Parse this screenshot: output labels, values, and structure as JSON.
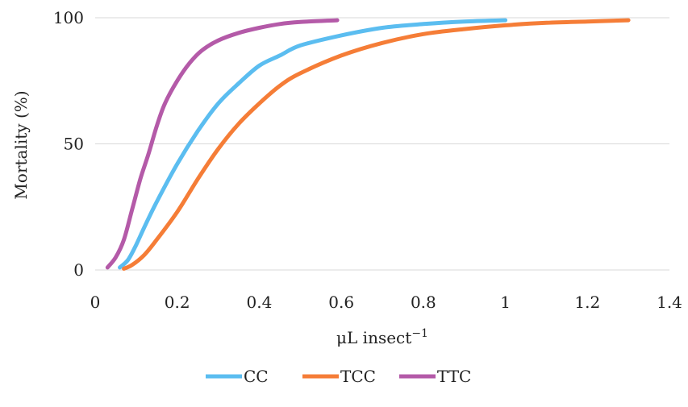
{
  "chart_data": {
    "type": "line",
    "title": "",
    "xlabel": "μL insect",
    "xlabel_superscript": "−1",
    "ylabel": "Mortality (%)",
    "xlim": [
      0,
      1.4
    ],
    "ylim": [
      0,
      100
    ],
    "x_ticks": [
      "0",
      "0.2",
      "0.4",
      "0.6",
      "0.8",
      "1",
      "1.2",
      "1.4"
    ],
    "y_ticks": [
      "0",
      "50",
      "100"
    ],
    "x_tick_values": [
      0,
      0.2,
      0.4,
      0.6,
      0.8,
      1.0,
      1.2,
      1.4
    ],
    "y_tick_values": [
      0,
      50,
      100
    ],
    "grid": "horizontal",
    "legend_position": "bottom",
    "series": [
      {
        "name": "CC",
        "color": "#5BBDF0",
        "points": [
          [
            0.06,
            1
          ],
          [
            0.08,
            4
          ],
          [
            0.1,
            10
          ],
          [
            0.12,
            17
          ],
          [
            0.15,
            27
          ],
          [
            0.2,
            42
          ],
          [
            0.25,
            55
          ],
          [
            0.3,
            66
          ],
          [
            0.35,
            74
          ],
          [
            0.4,
            81
          ],
          [
            0.45,
            85
          ],
          [
            0.5,
            89
          ],
          [
            0.6,
            93
          ],
          [
            0.7,
            96
          ],
          [
            0.8,
            97.5
          ],
          [
            0.9,
            98.5
          ],
          [
            1.0,
            99
          ]
        ]
      },
      {
        "name": "TCC",
        "color": "#F57D37",
        "points": [
          [
            0.07,
            0.5
          ],
          [
            0.09,
            2
          ],
          [
            0.12,
            6
          ],
          [
            0.15,
            12
          ],
          [
            0.2,
            23
          ],
          [
            0.25,
            36
          ],
          [
            0.3,
            48
          ],
          [
            0.35,
            58
          ],
          [
            0.4,
            66
          ],
          [
            0.45,
            73
          ],
          [
            0.5,
            78
          ],
          [
            0.6,
            85
          ],
          [
            0.7,
            90
          ],
          [
            0.8,
            93.5
          ],
          [
            0.9,
            95.5
          ],
          [
            1.0,
            97
          ],
          [
            1.1,
            98
          ],
          [
            1.2,
            98.5
          ],
          [
            1.3,
            99
          ]
        ]
      },
      {
        "name": "TTC",
        "color": "#B45AA8",
        "points": [
          [
            0.03,
            1
          ],
          [
            0.05,
            5
          ],
          [
            0.07,
            12
          ],
          [
            0.09,
            24
          ],
          [
            0.11,
            36
          ],
          [
            0.13,
            46
          ],
          [
            0.15,
            57
          ],
          [
            0.17,
            66
          ],
          [
            0.2,
            75
          ],
          [
            0.23,
            82
          ],
          [
            0.26,
            87
          ],
          [
            0.3,
            91
          ],
          [
            0.35,
            94
          ],
          [
            0.4,
            96
          ],
          [
            0.45,
            97.5
          ],
          [
            0.5,
            98.3
          ],
          [
            0.59,
            99
          ]
        ]
      }
    ]
  }
}
